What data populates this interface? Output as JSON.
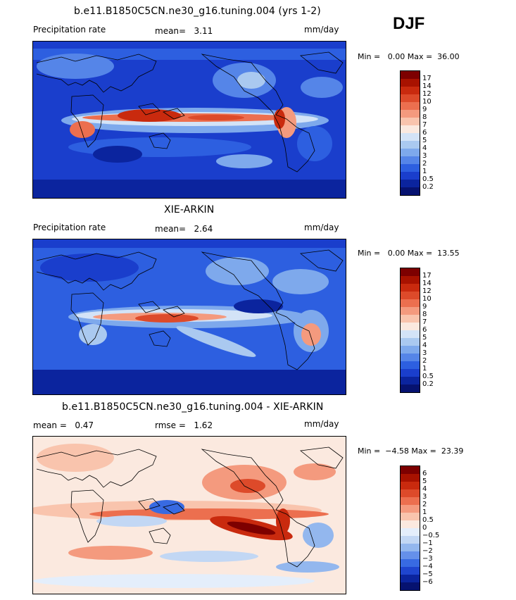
{
  "season": "DJF",
  "panels": [
    {
      "title": "b.e11.B1850C5CN.ne30_g16.tuning.004 (yrs 1-2)",
      "left_label": "Precipitation rate",
      "center_label": "mean=   3.11",
      "units": "mm/day",
      "minmax": "Min =   0.00 Max =  36.00",
      "colorbar_labels": [
        "17",
        "14",
        "12",
        "10",
        "9",
        "8",
        "7",
        "6",
        "5",
        "4",
        "3",
        "2",
        "1",
        "0.5",
        "0.2"
      ],
      "colors": [
        "#7d0000",
        "#a81200",
        "#c92a0e",
        "#dd4a2a",
        "#ec6f4f",
        "#f49a7e",
        "#f9c4ad",
        "#fbe9df",
        "#d3e3f7",
        "#aac9f0",
        "#7ea9ec",
        "#5585e8",
        "#2d5fe0",
        "#1a3ecc",
        "#0b249e",
        "#061270"
      ]
    },
    {
      "title": "XIE-ARKIN",
      "left_label": "Precipitation rate",
      "center_label": "mean=   2.64",
      "units": "mm/day",
      "minmax": "Min =   0.00 Max =  13.55",
      "colorbar_labels": [
        "17",
        "14",
        "12",
        "10",
        "9",
        "8",
        "7",
        "6",
        "5",
        "4",
        "3",
        "2",
        "1",
        "0.5",
        "0.2"
      ],
      "colors": [
        "#7d0000",
        "#a81200",
        "#c92a0e",
        "#dd4a2a",
        "#ec6f4f",
        "#f49a7e",
        "#f9c4ad",
        "#fbe9df",
        "#d3e3f7",
        "#aac9f0",
        "#7ea9ec",
        "#5585e8",
        "#2d5fe0",
        "#1a3ecc",
        "#0b249e",
        "#061270"
      ]
    },
    {
      "title": "b.e11.B1850C5CN.ne30_g16.tuning.004 - XIE-ARKIN",
      "left_label": "mean =   0.47",
      "center_label": "rmse =   1.62",
      "units": "mm/day",
      "minmax": "Min =  −4.58 Max =  23.39",
      "colorbar_labels": [
        "6",
        "5",
        "4",
        "3",
        "2",
        "1",
        "0.5",
        "0",
        "−0.5",
        "−1",
        "−2",
        "−3",
        "−4",
        "−5",
        "−6"
      ],
      "colors": [
        "#7d0000",
        "#a81200",
        "#c92a0e",
        "#dd4a2a",
        "#ec6f4f",
        "#f49a7e",
        "#f9c4ad",
        "#fbe9df",
        "#e4eefb",
        "#c2d7f4",
        "#93b7ee",
        "#6590ea",
        "#386ae2",
        "#1f45cf",
        "#0b249e",
        "#061270"
      ]
    }
  ]
}
